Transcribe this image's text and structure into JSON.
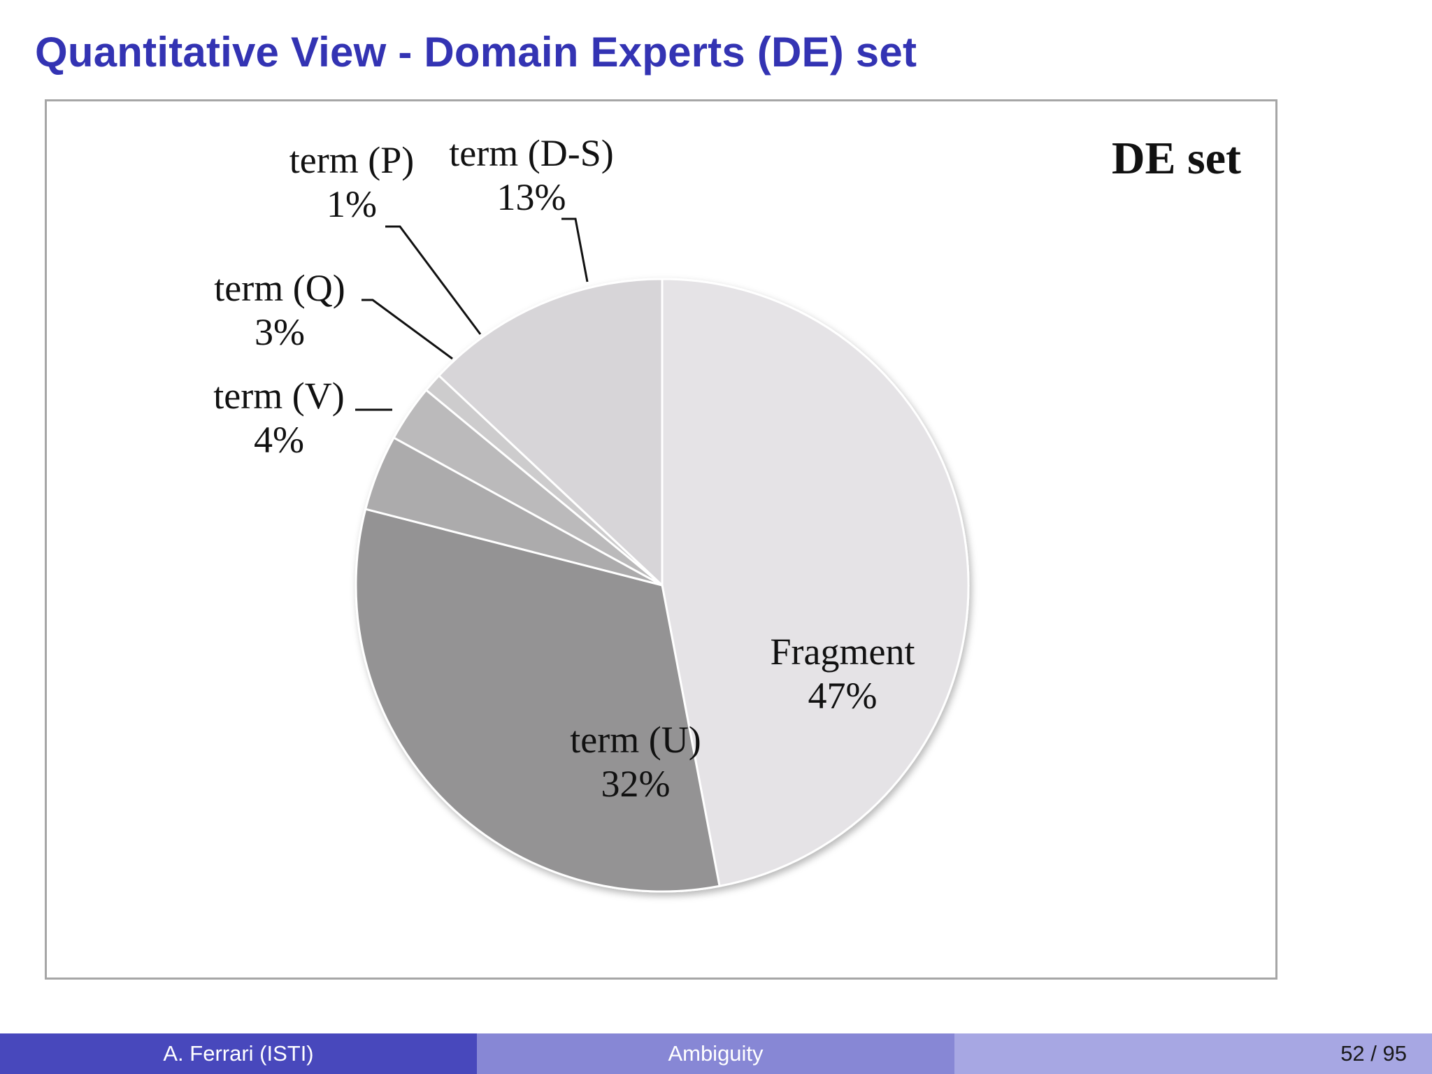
{
  "slide": {
    "title": "Quantitative View - Domain Experts (DE) set"
  },
  "footer": {
    "author": "A. Ferrari  (ISTI)",
    "topic": "Ambiguity",
    "page": "52 / 95"
  },
  "chart_data": {
    "type": "pie",
    "title": "DE set",
    "categories": [
      "Fragment",
      "term (U)",
      "term (V)",
      "term (Q)",
      "term (P)",
      "term (D-S)"
    ],
    "values": [
      47,
      32,
      4,
      3,
      1,
      13
    ],
    "value_labels": [
      "47%",
      "32%",
      "4%",
      "3%",
      "1%",
      "13%"
    ],
    "colors": [
      "#e5e3e6",
      "#949394",
      "#acabac",
      "#bbbabb",
      "#cdcccd",
      "#d7d5d8"
    ],
    "start_angle_deg": 90,
    "direction": "clockwise",
    "legend": "none"
  }
}
